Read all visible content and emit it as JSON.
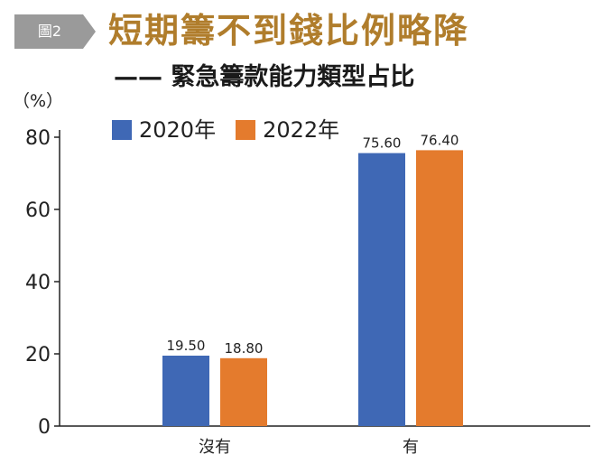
{
  "figure_label": "圖2",
  "title": "短期籌不到錢比例略降",
  "subtitle": "—— 緊急籌款能力類型占比",
  "colors": {
    "badge": "#9a9a9a",
    "title": "#b07d2c",
    "series_2020": "#3f68b5",
    "series_2022": "#e47b2d",
    "axis": "#222222"
  },
  "chart_data": {
    "type": "bar",
    "categories": [
      "沒有",
      "有"
    ],
    "series": [
      {
        "name": "2020年",
        "values": [
          19.5,
          75.6
        ],
        "labels": [
          "19.50",
          "75.60"
        ]
      },
      {
        "name": "2022年",
        "values": [
          18.8,
          76.4
        ],
        "labels": [
          "18.80",
          "76.40"
        ]
      }
    ],
    "ylabel": "（%）",
    "ylim": [
      0,
      80
    ],
    "yticks": [
      "0",
      "20",
      "40",
      "60",
      "80"
    ],
    "grid": false,
    "legend_position": "top-left"
  }
}
